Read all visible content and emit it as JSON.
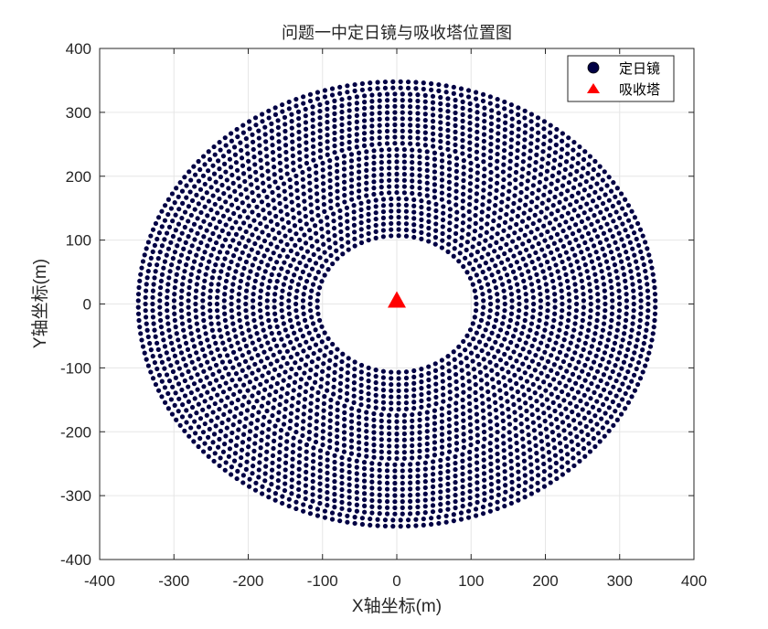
{
  "chart_data": {
    "type": "scatter",
    "title": "问题一中定日镜与吸收塔位置图",
    "xlabel": "X轴坐标(m)",
    "ylabel": "Y轴坐标(m)",
    "xlim": [
      -400,
      400
    ],
    "ylim": [
      -400,
      400
    ],
    "xticks": [
      -400,
      -300,
      -200,
      -100,
      0,
      100,
      200,
      300,
      400
    ],
    "yticks": [
      -400,
      -300,
      -200,
      -100,
      0,
      100,
      200,
      300,
      400
    ],
    "xtick_labels": [
      "-400",
      "-300",
      "-200",
      "-100",
      "0",
      "100",
      "200",
      "300",
      "400"
    ],
    "ytick_labels": [
      "-400",
      "-300",
      "-200",
      "-100",
      "0",
      "100",
      "200",
      "300",
      "400"
    ],
    "grid": true,
    "legend_position": "top-right",
    "series": [
      {
        "name": "定日镜",
        "marker": "circle",
        "color": "#000044",
        "pattern": "concentric rings centred at origin",
        "ring_radius_range": [
          107,
          348
        ],
        "ring_count": 26,
        "approx_point_spacing": 10.3
      },
      {
        "name": "吸收塔",
        "marker": "triangle",
        "color": "#ff0000",
        "points": [
          {
            "x": 0,
            "y": 4
          }
        ]
      }
    ]
  }
}
